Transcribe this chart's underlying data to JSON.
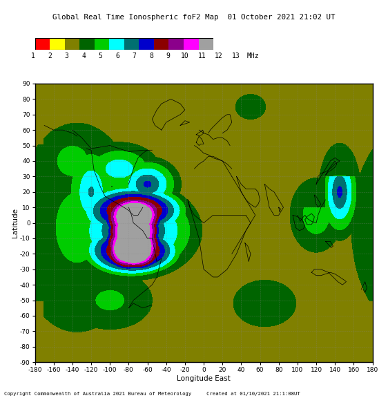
{
  "title": "Global Real Time Ionospheric foF2 Map  01 October 2021 21:02 UT",
  "xlabel": "Longitude East",
  "ylabel": "Latitude",
  "copyright": "Copyright Commonwealth of Australia 2021 Bureau of Meteorology     Created at 01/10/2021 21:1:08UT",
  "xlim": [
    -180,
    180
  ],
  "ylim": [
    -90,
    90
  ],
  "xticks": [
    -180,
    -160,
    -140,
    -120,
    -100,
    -80,
    -60,
    -40,
    -20,
    0,
    20,
    40,
    60,
    80,
    100,
    120,
    140,
    160,
    180
  ],
  "yticks": [
    -90,
    -80,
    -70,
    -60,
    -50,
    -40,
    -30,
    -20,
    -10,
    0,
    10,
    20,
    30,
    40,
    50,
    60,
    70,
    80,
    90
  ],
  "cmap_colors": [
    "#FF0000",
    "#FFFF00",
    "#808000",
    "#006400",
    "#00CC00",
    "#00FFFF",
    "#007070",
    "#0000CC",
    "#8B0000",
    "#8B008B",
    "#FF00FF",
    "#A0A0A0"
  ],
  "figsize": [
    5.62,
    5.76
  ],
  "dpi": 100
}
